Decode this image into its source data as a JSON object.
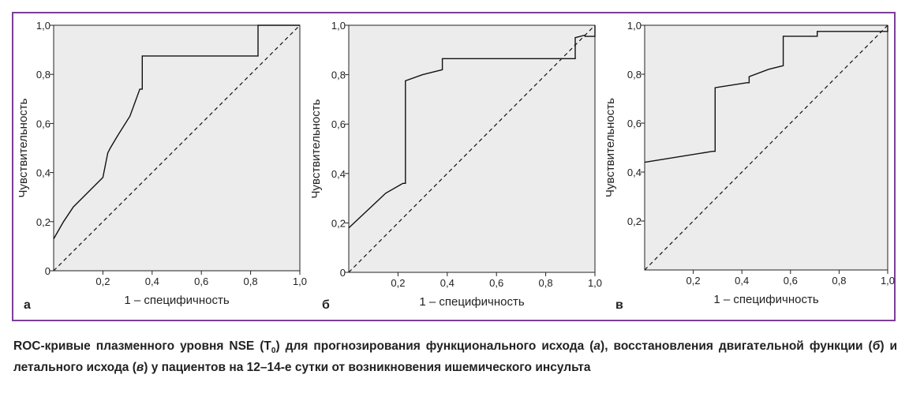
{
  "chart_data": [
    {
      "type": "line",
      "panel": "а",
      "xlabel": "1 – специфичность",
      "ylabel": "Чувствительность",
      "xlim": [
        0,
        1
      ],
      "ylim": [
        0,
        1
      ],
      "x_ticks": [
        "0,2",
        "0,4",
        "0,6",
        "0,8",
        "1,0"
      ],
      "y_ticks": [
        "0",
        "0,2",
        "0,4",
        "0,6",
        "0,8",
        "1,0"
      ],
      "roc": [
        [
          0,
          0.13
        ],
        [
          0.04,
          0.2
        ],
        [
          0.08,
          0.26
        ],
        [
          0.19,
          0.37
        ],
        [
          0.2,
          0.38
        ],
        [
          0.21,
          0.43
        ],
        [
          0.22,
          0.48
        ],
        [
          0.23,
          0.5
        ],
        [
          0.26,
          0.55
        ],
        [
          0.31,
          0.63
        ],
        [
          0.35,
          0.74
        ],
        [
          0.36,
          0.74
        ],
        [
          0.36,
          0.875
        ],
        [
          0.83,
          0.875
        ],
        [
          0.83,
          1
        ],
        [
          1,
          1
        ]
      ],
      "reference_line": [
        [
          0,
          0
        ],
        [
          1,
          1
        ]
      ]
    },
    {
      "type": "line",
      "panel": "б",
      "xlabel": "1 – специфичность",
      "ylabel": "Чувствительность",
      "xlim": [
        0,
        1
      ],
      "ylim": [
        0,
        1
      ],
      "x_ticks": [
        "0,2",
        "0,4",
        "0,6",
        "0,8",
        "1,0"
      ],
      "y_ticks": [
        "0",
        "0,2",
        "0,4",
        "0,6",
        "0,8",
        "1,0"
      ],
      "roc": [
        [
          0,
          0.18
        ],
        [
          0.15,
          0.32
        ],
        [
          0.22,
          0.36
        ],
        [
          0.23,
          0.36
        ],
        [
          0.23,
          0.775
        ],
        [
          0.3,
          0.8
        ],
        [
          0.38,
          0.82
        ],
        [
          0.38,
          0.865
        ],
        [
          0.92,
          0.865
        ],
        [
          0.92,
          0.95
        ],
        [
          0.96,
          0.96
        ],
        [
          0.96,
          0.955
        ],
        [
          1,
          0.955
        ],
        [
          1,
          1
        ]
      ],
      "reference_line": [
        [
          0,
          0
        ],
        [
          1,
          1
        ]
      ]
    },
    {
      "type": "line",
      "panel": "в",
      "xlabel": "1 – специфичность",
      "ylabel": "Чувствительность",
      "xlim": [
        0,
        1
      ],
      "ylim": [
        0,
        1
      ],
      "x_ticks": [
        "0,2",
        "0,4",
        "0,6",
        "0,8",
        "1,0"
      ],
      "y_ticks": [
        "0,2",
        "0,4",
        "0,6",
        "0,8",
        "1,0"
      ],
      "roc": [
        [
          0,
          0.44
        ],
        [
          0.28,
          0.485
        ],
        [
          0.29,
          0.485
        ],
        [
          0.29,
          0.745
        ],
        [
          0.42,
          0.765
        ],
        [
          0.43,
          0.765
        ],
        [
          0.43,
          0.79
        ],
        [
          0.51,
          0.82
        ],
        [
          0.57,
          0.835
        ],
        [
          0.57,
          0.955
        ],
        [
          0.71,
          0.955
        ],
        [
          0.71,
          0.975
        ],
        [
          1,
          0.975
        ],
        [
          1,
          1
        ]
      ],
      "reference_line": [
        [
          0,
          0
        ],
        [
          1,
          1
        ]
      ]
    }
  ],
  "caption": {
    "part1": "ROC-кривые плазменного уровня NSE (T",
    "sub": "0",
    "part2": ") для прогнозирования функционального исхода (",
    "i1": "а",
    "part3": "), восстановления двигательной функции (",
    "i2": "б",
    "part4": ") и летального исхода (",
    "i3": "в",
    "part5": ") у пациентов на 12–14-е сутки от возникновения ишемического инсульта"
  },
  "colors": {
    "frame": "#7b3f98",
    "plot_bg": "#ececec",
    "line": "#111111"
  }
}
